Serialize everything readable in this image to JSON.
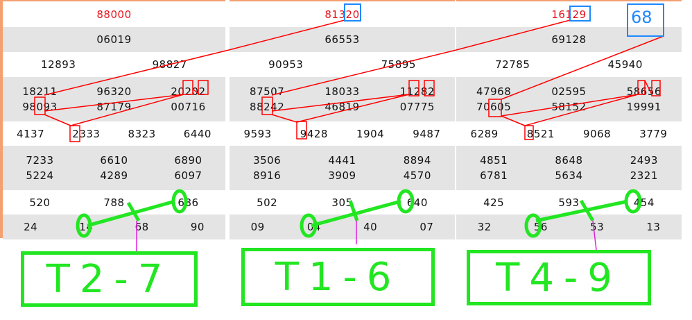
{
  "panels": [
    {
      "special": "88000",
      "first": "06019",
      "second": [
        "12893",
        "98827"
      ],
      "third": [
        "18211",
        "96320",
        "20202",
        "98093",
        "87179",
        "00716"
      ],
      "fourth": [
        "4137",
        "2333",
        "8323",
        "6440"
      ],
      "fifth": [
        "7233",
        "6610",
        "6890",
        "5224",
        "4289",
        "6097"
      ],
      "sixth": [
        "520",
        "788",
        "686"
      ],
      "seventh": [
        "24",
        "14",
        "68",
        "90"
      ]
    },
    {
      "special": "81320",
      "first": "66553",
      "second": [
        "90953",
        "75895"
      ],
      "third": [
        "87507",
        "18033",
        "11282",
        "88242",
        "46819",
        "07775"
      ],
      "fourth": [
        "9593",
        "9428",
        "1904",
        "9487"
      ],
      "fifth": [
        "3506",
        "4441",
        "8894",
        "8916",
        "3909",
        "4570"
      ],
      "sixth": [
        "502",
        "305",
        "640"
      ],
      "seventh": [
        "09",
        "04",
        "40",
        "07"
      ]
    },
    {
      "special": "16129",
      "first": "69128",
      "second": [
        "72785",
        "45940"
      ],
      "third": [
        "47968",
        "02595",
        "58656",
        "70605",
        "58152",
        "19991"
      ],
      "fourth": [
        "6289",
        "8521",
        "9068",
        "3779"
      ],
      "fifth": [
        "4851",
        "8648",
        "2493",
        "6781",
        "5634",
        "2321"
      ],
      "sixth": [
        "425",
        "593",
        "454"
      ],
      "seventh": [
        "32",
        "56",
        "53",
        "13"
      ]
    }
  ],
  "annotations": {
    "handwritten_note": "68",
    "labels": [
      "T2-7",
      "T1-6",
      "T4-9"
    ]
  },
  "colors": {
    "special": "#e8141c",
    "annotation_red": "#ff0000",
    "annotation_blue": "#1e88ff",
    "annotation_green": "#22e622",
    "magenta": "#e020e0",
    "accent": "#f4a070"
  }
}
